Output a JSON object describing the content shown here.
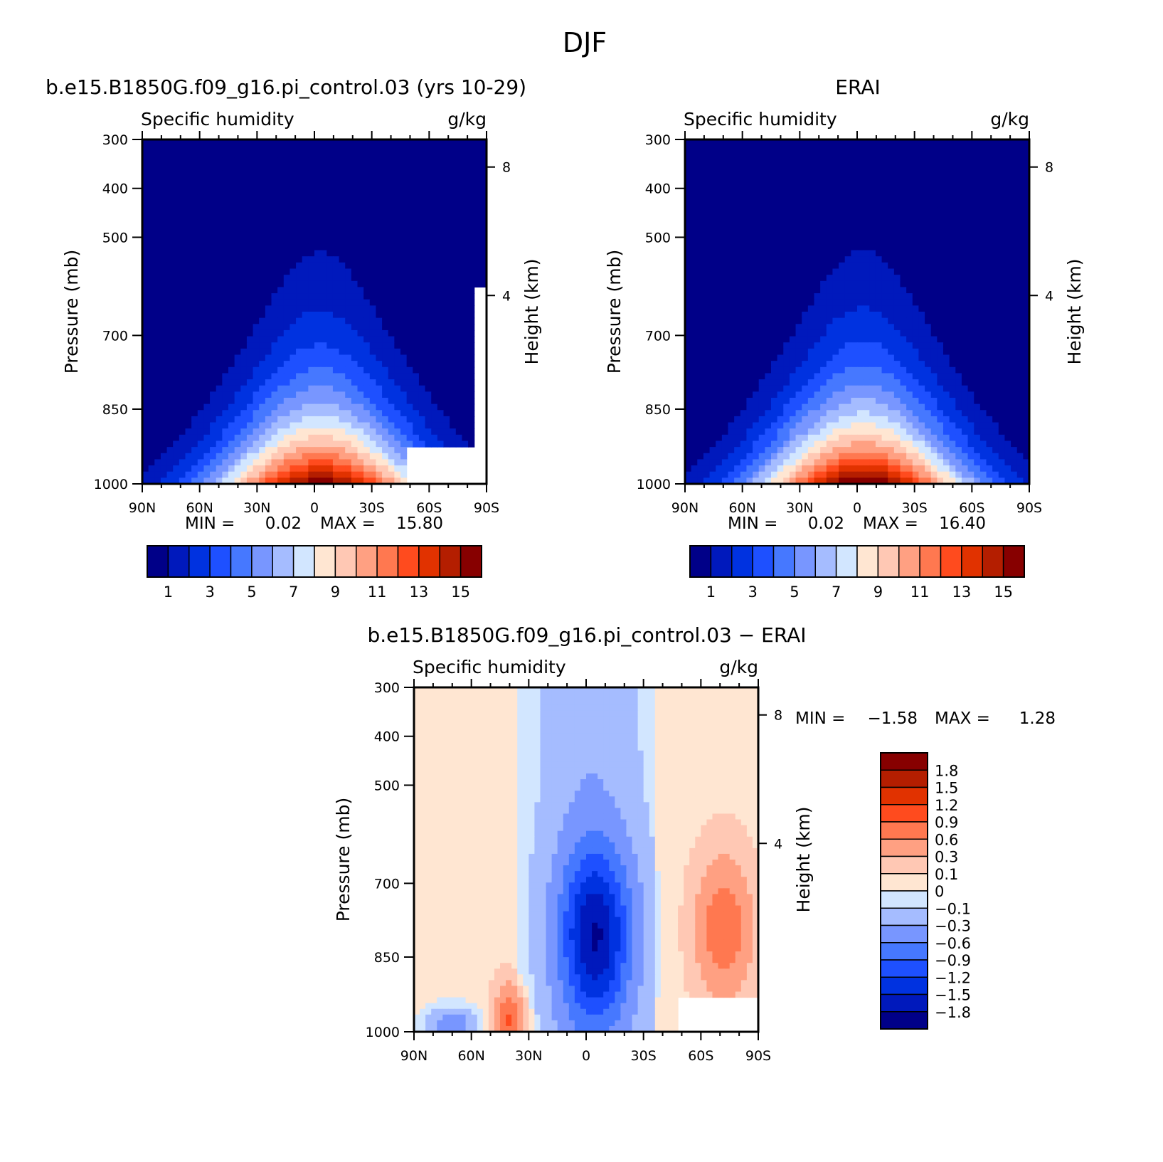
{
  "figure": {
    "title": "DJF"
  },
  "colors": {
    "abs": [
      "#000088",
      "#0019bc",
      "#0032e0",
      "#1e50ff",
      "#4678ff",
      "#7896ff",
      "#a5bcff",
      "#d2e6ff",
      "#ffe6d2",
      "#ffc8b4",
      "#ffa082",
      "#ff7850",
      "#ff4b1e",
      "#e13200",
      "#b41e00",
      "#870000"
    ],
    "diff": [
      "#000088",
      "#0019bc",
      "#0032e0",
      "#1e50ff",
      "#4678ff",
      "#7896ff",
      "#a5bcff",
      "#d2e6ff",
      "#ffe6d2",
      "#ffc8b4",
      "#ffa082",
      "#ff7850",
      "#ff4b1e",
      "#e13200",
      "#b41e00",
      "#870000"
    ]
  },
  "chart_data": [
    {
      "type": "heatmap",
      "title": "b.e15.B1850G.f09_g16.pi_control.03 (yrs 10-29)",
      "left_label": "Specific humidity",
      "right_label": "g/kg",
      "ylabel": "Pressure (mb)",
      "y2label": "Height (km)",
      "xticks": [
        "90N",
        "60N",
        "30N",
        "0",
        "30S",
        "60S",
        "90S"
      ],
      "yticks": [
        "300",
        "400",
        "500",
        "700",
        "850",
        "1000"
      ],
      "y2ticks": [
        "8",
        "4"
      ],
      "min_label": "MIN =",
      "min_value": "0.02",
      "max_label": "MAX =",
      "max_value": "15.80",
      "colorbar_labels": [
        "1",
        "3",
        "5",
        "7",
        "9",
        "11",
        "13",
        "15"
      ],
      "peak": {
        "lat": 0,
        "pressure": 1000,
        "value": 15.8
      }
    },
    {
      "type": "heatmap",
      "title": "ERAI",
      "left_label": "Specific humidity",
      "right_label": "g/kg",
      "ylabel": "Pressure (mb)",
      "y2label": "Height (km)",
      "xticks": [
        "90N",
        "60N",
        "30N",
        "0",
        "30S",
        "60S",
        "90S"
      ],
      "yticks": [
        "300",
        "400",
        "500",
        "700",
        "850",
        "1000"
      ],
      "y2ticks": [
        "8",
        "4"
      ],
      "min_label": "MIN =",
      "min_value": "0.02",
      "max_label": "MAX =",
      "max_value": "16.40",
      "colorbar_labels": [
        "1",
        "3",
        "5",
        "7",
        "9",
        "11",
        "13",
        "15"
      ],
      "peak": {
        "lat": 0,
        "pressure": 1000,
        "value": 16.4
      }
    },
    {
      "type": "heatmap",
      "title": "b.e15.B1850G.f09_g16.pi_control.03 − ERAI",
      "left_label": "Specific humidity",
      "right_label": "g/kg",
      "ylabel": "Pressure (mb)",
      "y2label": "Height (km)",
      "xticks": [
        "90N",
        "60N",
        "30N",
        "0",
        "30S",
        "60S",
        "90S"
      ],
      "yticks": [
        "300",
        "400",
        "500",
        "700",
        "850",
        "1000"
      ],
      "y2ticks": [
        "8",
        "4"
      ],
      "min_label": "MIN =",
      "min_value": "−1.58",
      "max_label": "MAX =",
      "max_value": "1.28",
      "colorbar_labels": [
        "1.8",
        "1.5",
        "1.2",
        "0.9",
        "0.6",
        "0.3",
        "0.1",
        "0",
        "−0.1",
        "−0.3",
        "−0.6",
        "−0.9",
        "−1.2",
        "−1.5",
        "−1.8"
      ]
    }
  ]
}
